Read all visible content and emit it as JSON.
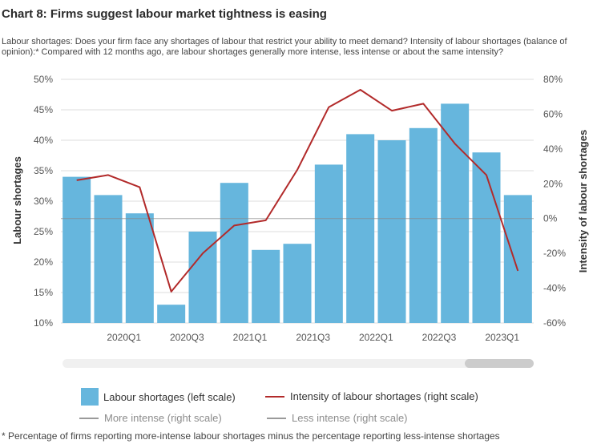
{
  "title": "Chart 8: Firms suggest labour market tightness is easing",
  "subtitle": "Labour shortages: Does your firm face any shortages of labour that restrict your ability to meet demand? Intensity of labour shortages (balance of opinion):* Compared with 12 months ago, are labour shortages generally more intense, less intense or about the same intensity?",
  "footnote": "* Percentage of firms reporting more-intense labour shortages minus the percentage reporting less-intense shortages",
  "legend": {
    "bar_label": "Labour shortages (left scale)",
    "line_label": "Intensity of labour shortages (right scale)",
    "more_label": "More intense (right scale)",
    "less_label": "Less intense (right scale)"
  },
  "colors": {
    "bar": "#66b6dd",
    "line": "#b22a2a",
    "muted": "#9a9a9a",
    "grid": "#dddddd",
    "zero_line": "#888888"
  },
  "chart_data": {
    "type": "bar",
    "x_tick_labels": [
      "2020Q1",
      "2020Q3",
      "2021Q1",
      "2021Q3",
      "2022Q1",
      "2022Q3",
      "2023Q1"
    ],
    "series": [
      {
        "name": "Labour shortages (left scale)",
        "type": "bar",
        "axis": "left",
        "values": [
          34,
          31,
          28,
          13,
          25,
          33,
          22,
          23,
          36,
          41,
          40,
          42,
          46,
          38,
          31
        ]
      },
      {
        "name": "Intensity of labour shortages (right scale)",
        "type": "line",
        "axis": "right",
        "values": [
          22,
          25,
          18,
          -42,
          -20,
          -4,
          -1,
          28,
          64,
          74,
          62,
          66,
          43,
          25,
          -30
        ]
      }
    ],
    "y_left": {
      "label": "Labour shortages",
      "min": 10,
      "max": 50,
      "ticks": [
        "10%",
        "15%",
        "20%",
        "25%",
        "30%",
        "35%",
        "40%",
        "45%",
        "50%"
      ]
    },
    "y_right": {
      "label": "Intensity of labour shortages",
      "min": -60,
      "max": 80,
      "ticks": [
        "-60%",
        "-40%",
        "-20%",
        "0%",
        "20%",
        "40%",
        "60%",
        "80%"
      ]
    },
    "grid": true,
    "legend_position": "bottom"
  }
}
